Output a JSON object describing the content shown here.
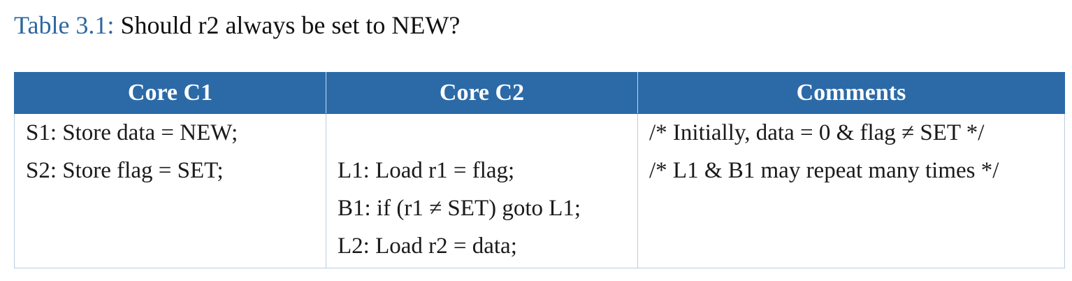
{
  "caption": {
    "label": "Table 3.1:",
    "text": "Should r2 always be set to NEW?"
  },
  "table": {
    "headers": [
      "Core C1",
      "Core C2",
      "Comments"
    ],
    "columns": [
      [
        "S1: Store data = NEW;",
        "S2: Store flag = SET;",
        "",
        ""
      ],
      [
        "",
        "L1: Load r1 = flag;",
        "B1: if (r1 ≠ SET) goto L1;",
        "L2: Load r2 = data;"
      ],
      [
        "/* Initially, data = 0 & flag ≠ SET */",
        "/* L1 & B1 may repeat many times */",
        "",
        ""
      ]
    ]
  },
  "colors": {
    "caption_label": "#2c67a0",
    "header_background": "#2c6aa7",
    "header_text": "#ffffff",
    "grid_lines": "#b9cde2"
  }
}
